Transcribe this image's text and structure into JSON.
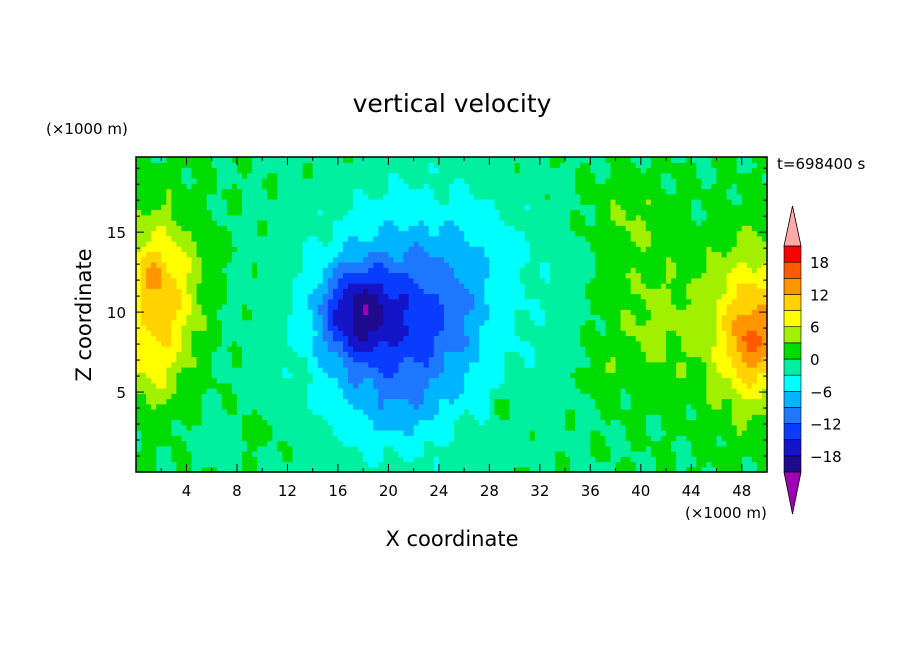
{
  "chart_data": {
    "type": "heatmap",
    "title": "vertical velocity",
    "xlabel": "X coordinate",
    "ylabel": "Z coordinate",
    "x_unit": "(×1000 m)",
    "y_unit": "(×1000 m)",
    "time_label": "t=698400 s",
    "xlim": [
      0,
      50
    ],
    "ylim": [
      0,
      19.7
    ],
    "x_ticks": [
      4,
      8,
      12,
      16,
      20,
      24,
      28,
      32,
      36,
      40,
      44,
      48
    ],
    "y_ticks": [
      5,
      10,
      15
    ],
    "z_range": [
      -21,
      21
    ],
    "colorbar": {
      "levels": [
        -21,
        -18,
        -15,
        -12,
        -9,
        -6,
        -3,
        0,
        3,
        6,
        9,
        12,
        15,
        18,
        21
      ],
      "tick_labels": [
        "18",
        "12",
        "6",
        "0",
        "−6",
        "−12",
        "−18"
      ],
      "tick_values": [
        18,
        12,
        6,
        0,
        -6,
        -12,
        -18
      ],
      "colors": [
        "#1e0a8c",
        "#1414c8",
        "#0a3cff",
        "#1e78ff",
        "#00b4ff",
        "#00ffff",
        "#00f0a0",
        "#00dc00",
        "#a0f000",
        "#ffff00",
        "#ffd200",
        "#ff9600",
        "#ff5a00",
        "#ff0000"
      ],
      "over_color": "#ffaaaa",
      "under_color": "#a000b4"
    },
    "features": [
      {
        "x": 2,
        "z": 11,
        "w": 3.0,
        "d": 5.0,
        "a": 11
      },
      {
        "x": 1,
        "z": 6,
        "w": 2.0,
        "d": 2.5,
        "a": 3
      },
      {
        "x": 1,
        "z": 12.5,
        "w": 1.3,
        "d": 1.5,
        "a": 3
      },
      {
        "x": 49,
        "z": 9,
        "w": 3.5,
        "d": 5.0,
        "a": 12
      },
      {
        "x": 48.5,
        "z": 8,
        "w": 1.5,
        "d": 2.0,
        "a": 4
      },
      {
        "x": 41,
        "z": 9.5,
        "w": 4.0,
        "d": 4.5,
        "a": 4
      },
      {
        "x": 39,
        "z": 16,
        "w": 3.0,
        "d": 2.5,
        "a": 3
      },
      {
        "x": 17.5,
        "z": 10,
        "w": 3.0,
        "d": 3.0,
        "a": -12
      },
      {
        "x": 21,
        "z": 8,
        "w": 5.5,
        "d": 5.5,
        "a": -6
      },
      {
        "x": 23.5,
        "z": 10,
        "w": 4.0,
        "d": 4.0,
        "a": -3
      },
      {
        "x": 20,
        "z": 4,
        "w": 4.0,
        "d": 2.5,
        "a": -2
      },
      {
        "x": 24,
        "z": 14,
        "w": 8.0,
        "d": 5.0,
        "a": -3
      },
      {
        "x": 22,
        "z": 9,
        "w": 11.0,
        "d": 8.0,
        "a": -4
      },
      {
        "x": 29,
        "z": 4,
        "w": 1.0,
        "d": 1.0,
        "a": 3
      },
      {
        "x": 26,
        "z": 2.5,
        "w": 1.0,
        "d": 1.0,
        "a": 2
      },
      {
        "x": 37,
        "z": 6,
        "w": 1.0,
        "d": 1.5,
        "a": 3
      },
      {
        "x": 6,
        "z": 2,
        "w": 2.0,
        "d": 1.0,
        "a": -2
      },
      {
        "x": 9,
        "z": 2.5,
        "w": 2.0,
        "d": 1.0,
        "a": 2
      }
    ]
  }
}
